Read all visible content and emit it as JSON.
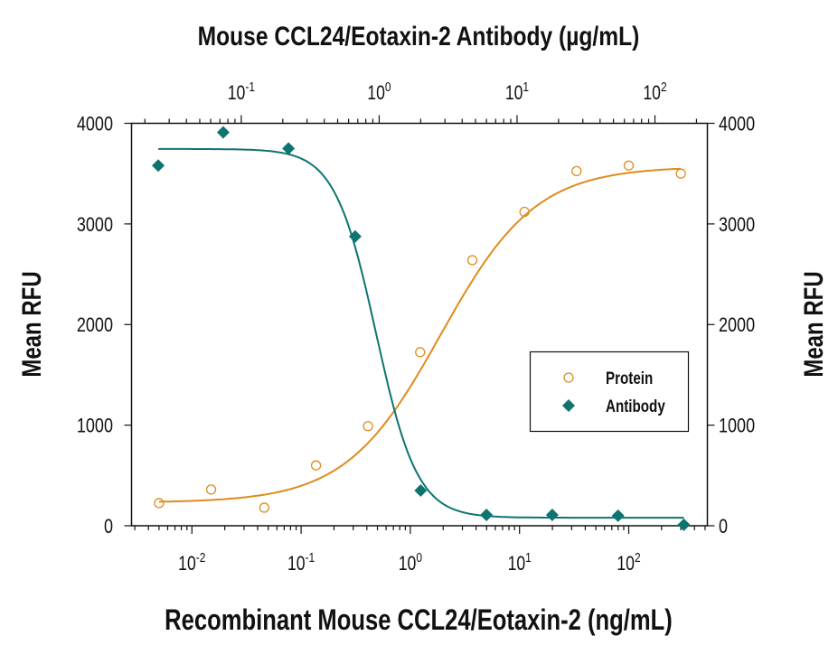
{
  "chart_data": {
    "type": "scatter",
    "title": "Mouse CCL24/Eotaxin-2 Antibody (µg/mL)",
    "xlabel": "Recombinant Mouse CCL24/Eotaxin-2 (ng/mL)",
    "ylabel": "Mean RFU",
    "ylabel_right": "Mean RFU",
    "x_scale": "log",
    "x_top_scale": "log",
    "xlim": [
      0.0028,
      525
    ],
    "x_top_lim": [
      0.016,
      240
    ],
    "ylim": [
      0,
      4000
    ],
    "x_ticks": [
      "10-2",
      "10-1",
      "100",
      "101",
      "102"
    ],
    "x_tick_values": [
      0.01,
      0.1,
      1,
      10,
      100
    ],
    "x_top_ticks": [
      "10-1",
      "100",
      "101",
      "102"
    ],
    "x_top_tick_values": [
      0.1,
      1,
      10,
      100
    ],
    "y_ticks": [
      "0",
      "1000",
      "2000",
      "3000",
      "4000"
    ],
    "grid": false,
    "legend_position": "center-right",
    "series": [
      {
        "name": "Protein",
        "axis": "bottom",
        "marker": "open-circle",
        "color": "#E08A1E",
        "x": [
          0.005,
          0.015,
          0.046,
          0.137,
          0.41,
          1.23,
          3.7,
          11.1,
          33.3,
          100,
          300
        ],
        "y": [
          225,
          360,
          180,
          600,
          990,
          1725,
          2640,
          3120,
          3525,
          3580,
          3500
        ]
      },
      {
        "name": "Antibody",
        "axis": "top",
        "marker": "filled-diamond",
        "color": "#0E7470",
        "x": [
          0.025,
          0.074,
          0.22,
          0.67,
          2,
          6,
          18,
          54,
          162
        ],
        "y": [
          3580,
          3910,
          3750,
          2875,
          350,
          108,
          108,
          100,
          10
        ]
      }
    ]
  }
}
